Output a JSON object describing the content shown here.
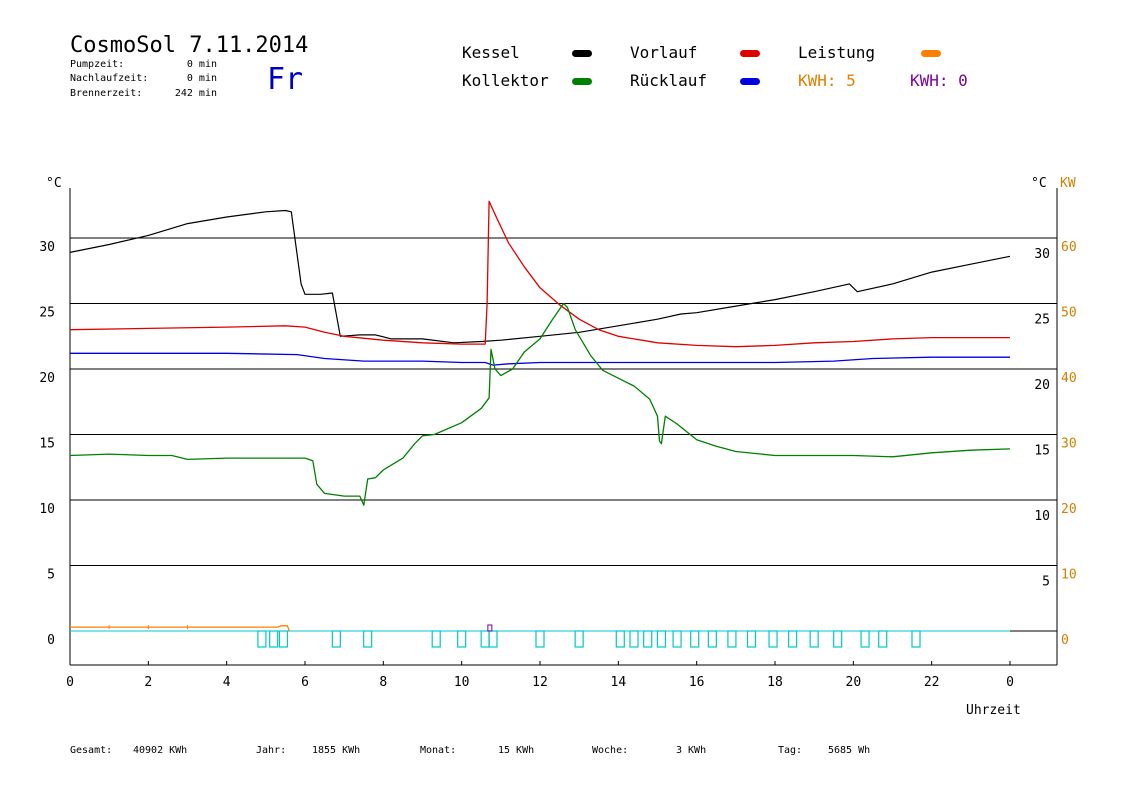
{
  "header": {
    "title": "CosmoSol 7.11.2014",
    "day": "Fr",
    "stats": [
      {
        "label": "Pumpzeit:",
        "value": "0 min"
      },
      {
        "label": "Nachlaufzeit:",
        "value": "0 min"
      },
      {
        "label": "Brennerzeit:",
        "value": "242 min"
      }
    ]
  },
  "legend": {
    "items": [
      {
        "label": "Kessel",
        "color": "#000000"
      },
      {
        "label": "Vorlauf",
        "color": "#e00000"
      },
      {
        "label": "Leistung",
        "color": "#ff8000"
      },
      {
        "label": "Kollektor",
        "color": "#008000"
      },
      {
        "label": "Rücklauf",
        "color": "#0000e0"
      }
    ],
    "kwh_orange": "KWH: 5",
    "kwh_purple": "KWH: 0"
  },
  "footer": [
    {
      "label": "Gesamt:",
      "value": "40902 KWh"
    },
    {
      "label": "Jahr:",
      "value": "1855 KWh"
    },
    {
      "label": "Monat:",
      "value": "15 KWh"
    },
    {
      "label": "Woche:",
      "value": "3 KWh"
    },
    {
      "label": "Tag:",
      "value": "5685 Wh"
    }
  ],
  "colors": {
    "grid": "#000000",
    "kw_axis": "#d08000",
    "pump": "#00c8c8",
    "purple": "#8000a0"
  },
  "chart_data": {
    "type": "line",
    "xlabel": "Uhrzeit",
    "ylabel_left": "°C",
    "ylabel_right": "°C",
    "ylabel_right2": "KW",
    "x_ticks": [
      "0",
      "2",
      "4",
      "6",
      "8",
      "10",
      "12",
      "14",
      "16",
      "18",
      "20",
      "22",
      "0"
    ],
    "xlim": [
      0,
      24
    ],
    "ylim": [
      -2.5,
      33.5
    ],
    "y_ticks_left": [
      "0",
      "5",
      "10",
      "15",
      "20",
      "25",
      "30"
    ],
    "y_ticks_right": [
      "5",
      "10",
      "15",
      "20",
      "25",
      "30"
    ],
    "y_ticks_kw": [
      "0",
      "10",
      "20",
      "30",
      "40",
      "50",
      "60"
    ],
    "grid": true,
    "series": [
      {
        "name": "Kessel",
        "color": "#000000",
        "points": [
          [
            0,
            28.9
          ],
          [
            1,
            29.5
          ],
          [
            2,
            30.2
          ],
          [
            3,
            31.1
          ],
          [
            4,
            31.6
          ],
          [
            5,
            32.0
          ],
          [
            5.5,
            32.1
          ],
          [
            5.65,
            32.0
          ],
          [
            5.9,
            26.5
          ],
          [
            6.0,
            25.7
          ],
          [
            6.4,
            25.7
          ],
          [
            6.7,
            25.8
          ],
          [
            6.9,
            22.5
          ],
          [
            7.4,
            22.6
          ],
          [
            7.8,
            22.6
          ],
          [
            8.2,
            22.3
          ],
          [
            9,
            22.3
          ],
          [
            9.8,
            22.0
          ],
          [
            10.5,
            22.1
          ],
          [
            11,
            22.2
          ],
          [
            12,
            22.5
          ],
          [
            13,
            22.8
          ],
          [
            14,
            23.3
          ],
          [
            15,
            23.8
          ],
          [
            15.6,
            24.2
          ],
          [
            16,
            24.3
          ],
          [
            17,
            24.8
          ],
          [
            18,
            25.3
          ],
          [
            19,
            25.9
          ],
          [
            19.9,
            26.5
          ],
          [
            20.1,
            25.9
          ],
          [
            21,
            26.5
          ],
          [
            22,
            27.4
          ],
          [
            23,
            28.0
          ],
          [
            24,
            28.6
          ]
        ]
      },
      {
        "name": "Vorlauf",
        "color": "#e00000",
        "points": [
          [
            0,
            23.0
          ],
          [
            2,
            23.1
          ],
          [
            4,
            23.2
          ],
          [
            5.5,
            23.3
          ],
          [
            6,
            23.2
          ],
          [
            6.5,
            22.8
          ],
          [
            7,
            22.5
          ],
          [
            8,
            22.2
          ],
          [
            9,
            22.0
          ],
          [
            10,
            21.9
          ],
          [
            10.6,
            21.9
          ],
          [
            10.65,
            25
          ],
          [
            10.7,
            32.8
          ],
          [
            10.9,
            31.5
          ],
          [
            11.2,
            29.6
          ],
          [
            11.6,
            27.8
          ],
          [
            12,
            26.2
          ],
          [
            12.5,
            24.9
          ],
          [
            13,
            23.8
          ],
          [
            13.5,
            23.0
          ],
          [
            14,
            22.5
          ],
          [
            15,
            22.0
          ],
          [
            16,
            21.8
          ],
          [
            17,
            21.7
          ],
          [
            18,
            21.8
          ],
          [
            19,
            22.0
          ],
          [
            20,
            22.1
          ],
          [
            21,
            22.3
          ],
          [
            22,
            22.4
          ],
          [
            23,
            22.4
          ],
          [
            24,
            22.4
          ]
        ]
      },
      {
        "name": "Rücklauf",
        "color": "#0000e0",
        "points": [
          [
            0,
            21.2
          ],
          [
            2,
            21.2
          ],
          [
            4,
            21.2
          ],
          [
            5.8,
            21.1
          ],
          [
            6.5,
            20.8
          ],
          [
            7.5,
            20.6
          ],
          [
            9,
            20.6
          ],
          [
            10,
            20.5
          ],
          [
            10.6,
            20.5
          ],
          [
            10.8,
            20.3
          ],
          [
            11.2,
            20.4
          ],
          [
            12,
            20.5
          ],
          [
            14,
            20.5
          ],
          [
            16,
            20.5
          ],
          [
            18,
            20.5
          ],
          [
            19.5,
            20.6
          ],
          [
            20.5,
            20.8
          ],
          [
            22,
            20.9
          ],
          [
            24,
            20.9
          ]
        ]
      },
      {
        "name": "Kollektor",
        "color": "#008000",
        "points": [
          [
            0,
            13.4
          ],
          [
            1,
            13.5
          ],
          [
            2,
            13.4
          ],
          [
            2.6,
            13.4
          ],
          [
            3,
            13.1
          ],
          [
            4,
            13.2
          ],
          [
            5,
            13.2
          ],
          [
            6,
            13.2
          ],
          [
            6.2,
            13.0
          ],
          [
            6.3,
            11.2
          ],
          [
            6.5,
            10.5
          ],
          [
            7,
            10.3
          ],
          [
            7.4,
            10.3
          ],
          [
            7.5,
            9.6
          ],
          [
            7.6,
            11.6
          ],
          [
            7.8,
            11.7
          ],
          [
            8,
            12.3
          ],
          [
            8.5,
            13.2
          ],
          [
            8.8,
            14.3
          ],
          [
            9.0,
            14.9
          ],
          [
            9.3,
            15.0
          ],
          [
            10,
            15.9
          ],
          [
            10.5,
            17
          ],
          [
            10.7,
            17.8
          ],
          [
            10.75,
            21.5
          ],
          [
            10.85,
            20.0
          ],
          [
            11.0,
            19.5
          ],
          [
            11.3,
            20.0
          ],
          [
            11.6,
            21.3
          ],
          [
            12,
            22.3
          ],
          [
            12.3,
            23.7
          ],
          [
            12.6,
            25.0
          ],
          [
            12.7,
            24.7
          ],
          [
            12.9,
            23.0
          ],
          [
            13.3,
            21.0
          ],
          [
            13.6,
            19.9
          ],
          [
            14,
            19.3
          ],
          [
            14.4,
            18.7
          ],
          [
            14.8,
            17.7
          ],
          [
            15.0,
            16.4
          ],
          [
            15.05,
            14.5
          ],
          [
            15.1,
            14.3
          ],
          [
            15.2,
            16.4
          ],
          [
            15.5,
            15.8
          ],
          [
            16,
            14.6
          ],
          [
            16.5,
            14.1
          ],
          [
            17,
            13.7
          ],
          [
            18,
            13.4
          ],
          [
            19,
            13.4
          ],
          [
            20,
            13.4
          ],
          [
            21,
            13.3
          ],
          [
            22,
            13.6
          ],
          [
            23,
            13.8
          ],
          [
            24,
            13.9
          ]
        ]
      },
      {
        "name": "Leistung",
        "color": "#ff8000",
        "points": [
          [
            0,
            0.3
          ],
          [
            5.3,
            0.3
          ],
          [
            5.4,
            0.4
          ],
          [
            5.55,
            0.4
          ],
          [
            5.6,
            0
          ]
        ]
      }
    ],
    "pump_events": [
      4.9,
      5.2,
      5.45,
      6.8,
      7.6,
      9.35,
      10.0,
      10.6,
      10.8,
      12.0,
      13.0,
      14.05,
      14.4,
      14.75,
      15.1,
      15.5,
      15.95,
      16.4,
      16.9,
      17.4,
      17.95,
      18.45,
      19.0,
      19.6,
      20.3,
      20.75,
      21.6
    ]
  }
}
